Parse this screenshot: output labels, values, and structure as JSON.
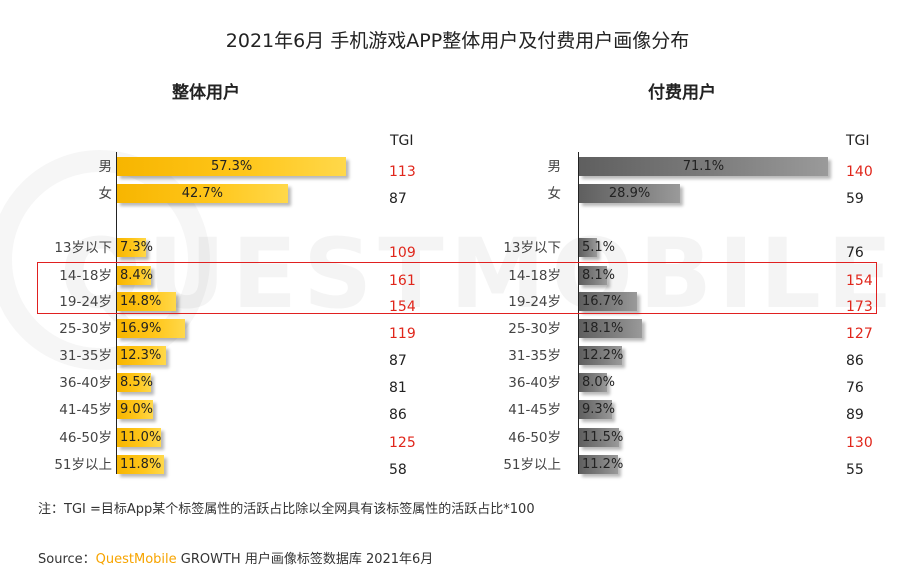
{
  "chart_data": [
    {
      "type": "bar",
      "orientation": "horizontal",
      "title": "整体用户",
      "series_color": "#ffc61a",
      "categories": [
        "男",
        "女",
        "13岁以下",
        "14-18岁",
        "19-24岁",
        "25-30岁",
        "31-35岁",
        "36-40岁",
        "41-45岁",
        "46-50岁",
        "51岁以上"
      ],
      "values": [
        57.3,
        42.7,
        7.3,
        8.4,
        14.8,
        16.9,
        12.3,
        8.5,
        9.0,
        11.0,
        11.8
      ],
      "value_labels": [
        "57.3%",
        "42.7%",
        "7.3%",
        "8.4%",
        "14.8%",
        "16.9%",
        "12.3%",
        "8.5%",
        "9.0%",
        "11.0%",
        "11.8%"
      ],
      "tgi": [
        "113",
        "87",
        "109",
        "161",
        "154",
        "119",
        "87",
        "81",
        "86",
        "125",
        "58"
      ],
      "tgi_highlight": [
        true,
        false,
        true,
        true,
        true,
        true,
        false,
        false,
        false,
        true,
        false
      ]
    },
    {
      "type": "bar",
      "orientation": "horizontal",
      "title": "付费用户",
      "series_color": "#7d7d7d",
      "categories": [
        "男",
        "女",
        "13岁以下",
        "14-18岁",
        "19-24岁",
        "25-30岁",
        "31-35岁",
        "36-40岁",
        "41-45岁",
        "46-50岁",
        "51岁以上"
      ],
      "values": [
        71.1,
        28.9,
        5.1,
        8.1,
        16.7,
        18.1,
        12.2,
        8.0,
        9.3,
        11.5,
        11.2
      ],
      "value_labels": [
        "71.1%",
        "28.9%",
        "5.1%",
        "8.1%",
        "16.7%",
        "18.1%",
        "12.2%",
        "8.0%",
        "9.3%",
        "11.5%",
        "11.2%"
      ],
      "tgi": [
        "140",
        "59",
        "76",
        "154",
        "173",
        "127",
        "86",
        "76",
        "89",
        "130",
        "55"
      ],
      "tgi_highlight": [
        true,
        false,
        false,
        true,
        true,
        true,
        false,
        false,
        false,
        true,
        false
      ]
    }
  ],
  "title": "2021年6月 手机游戏APP整体用户及付费用户画像分布",
  "tgi_header": "TGI",
  "watermark": "QUESTMOBILE",
  "note": "注：TGI =目标App某个标签属性的活跃占比除以全网具有该标签属性的活跃占比*100",
  "source_prefix": "Source：",
  "source_brand": "QuestMobile",
  "source_rest": "GROWTH 用户画像标签数据库 2021年6月",
  "highlight_color": "#e02020"
}
